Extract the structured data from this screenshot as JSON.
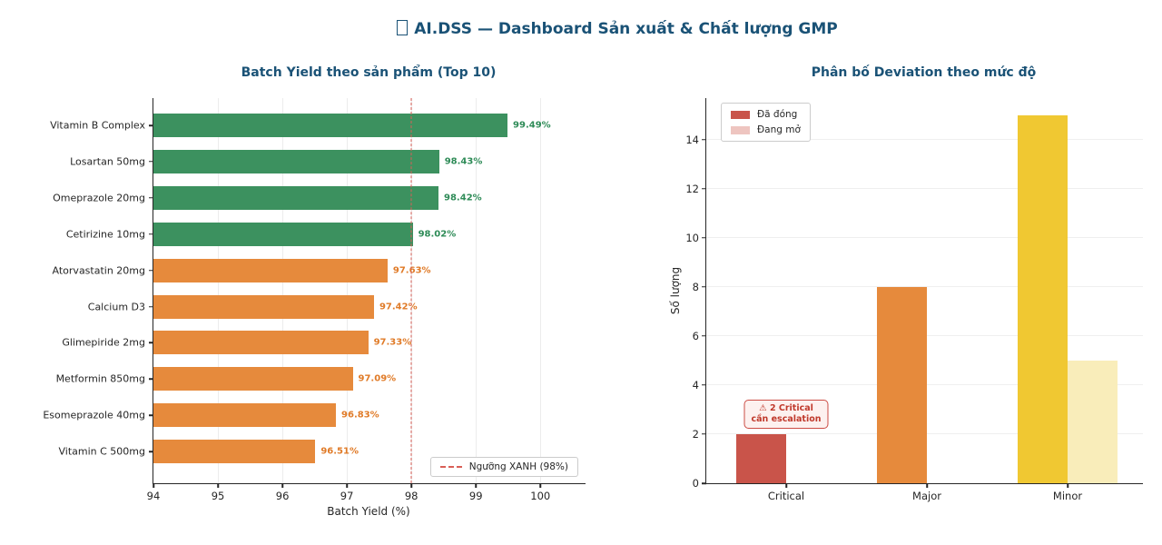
{
  "header": {
    "icon": "missing-glyph-box",
    "title": "AI.DSS — Dashboard Sản xuất & Chất lượng GMP"
  },
  "chart_data": [
    {
      "type": "bar",
      "orientation": "horizontal",
      "title": "Batch Yield theo sản phẩm (Top 10)",
      "categories": [
        "Vitamin B Complex",
        "Losartan 50mg",
        "Omeprazole 20mg",
        "Cetirizine 10mg",
        "Atorvastatin 20mg",
        "Calcium D3",
        "Glimepiride 2mg",
        "Metformin 850mg",
        "Esomeprazole 40mg",
        "Vitamin C 500mg"
      ],
      "values": [
        99.49,
        98.43,
        98.42,
        98.02,
        97.63,
        97.42,
        97.33,
        97.09,
        96.83,
        96.51
      ],
      "value_labels": [
        "99.49%",
        "98.43%",
        "98.42%",
        "98.02%",
        "97.63%",
        "97.42%",
        "97.33%",
        "97.09%",
        "96.83%",
        "96.51%"
      ],
      "bar_colors": [
        "#3c915f",
        "#3c915f",
        "#3c915f",
        "#3c915f",
        "#e68a3c",
        "#e68a3c",
        "#e68a3c",
        "#e68a3c",
        "#e68a3c",
        "#e68a3c"
      ],
      "label_colors": [
        "#2e8b57",
        "#2e8b57",
        "#2e8b57",
        "#2e8b57",
        "#e07b28",
        "#e07b28",
        "#e07b28",
        "#e07b28",
        "#e07b28",
        "#e07b28"
      ],
      "xlabel": "Batch Yield (%)",
      "xlim": [
        94,
        100.7
      ],
      "xticks": [
        94,
        95,
        96,
        97,
        98,
        99,
        100
      ],
      "grid": "vertical",
      "threshold": {
        "value": 98,
        "label": "Ngưỡng XANH (98%)",
        "color": "#d95f57",
        "style": "dashed"
      },
      "legend_position": "lower right"
    },
    {
      "type": "bar",
      "orientation": "vertical",
      "title": "Phân bố Deviation theo mức độ",
      "categories": [
        "Critical",
        "Major",
        "Minor"
      ],
      "series": [
        {
          "name": "Đã đóng",
          "values": [
            2,
            8,
            15
          ]
        },
        {
          "name": "Đang mở",
          "values": [
            0,
            0,
            5
          ]
        }
      ],
      "closed_colors": [
        "#c9544a",
        "#e68a3c",
        "#f0c832"
      ],
      "open_colors": [
        "#eebeb6",
        "#f6d4a9",
        "#f9edba"
      ],
      "legend_swatches": {
        "closed": "#c9544a",
        "open": "#eec5c0"
      },
      "ylabel": "Số lượng",
      "ylim": [
        0,
        15.7
      ],
      "yticks": [
        0,
        2,
        4,
        6,
        8,
        10,
        12,
        14
      ],
      "grid": "horizontal",
      "legend_position": "upper left",
      "annotation": {
        "line1": "⚠ 2 Critical",
        "line2": "cần escalation"
      }
    }
  ]
}
